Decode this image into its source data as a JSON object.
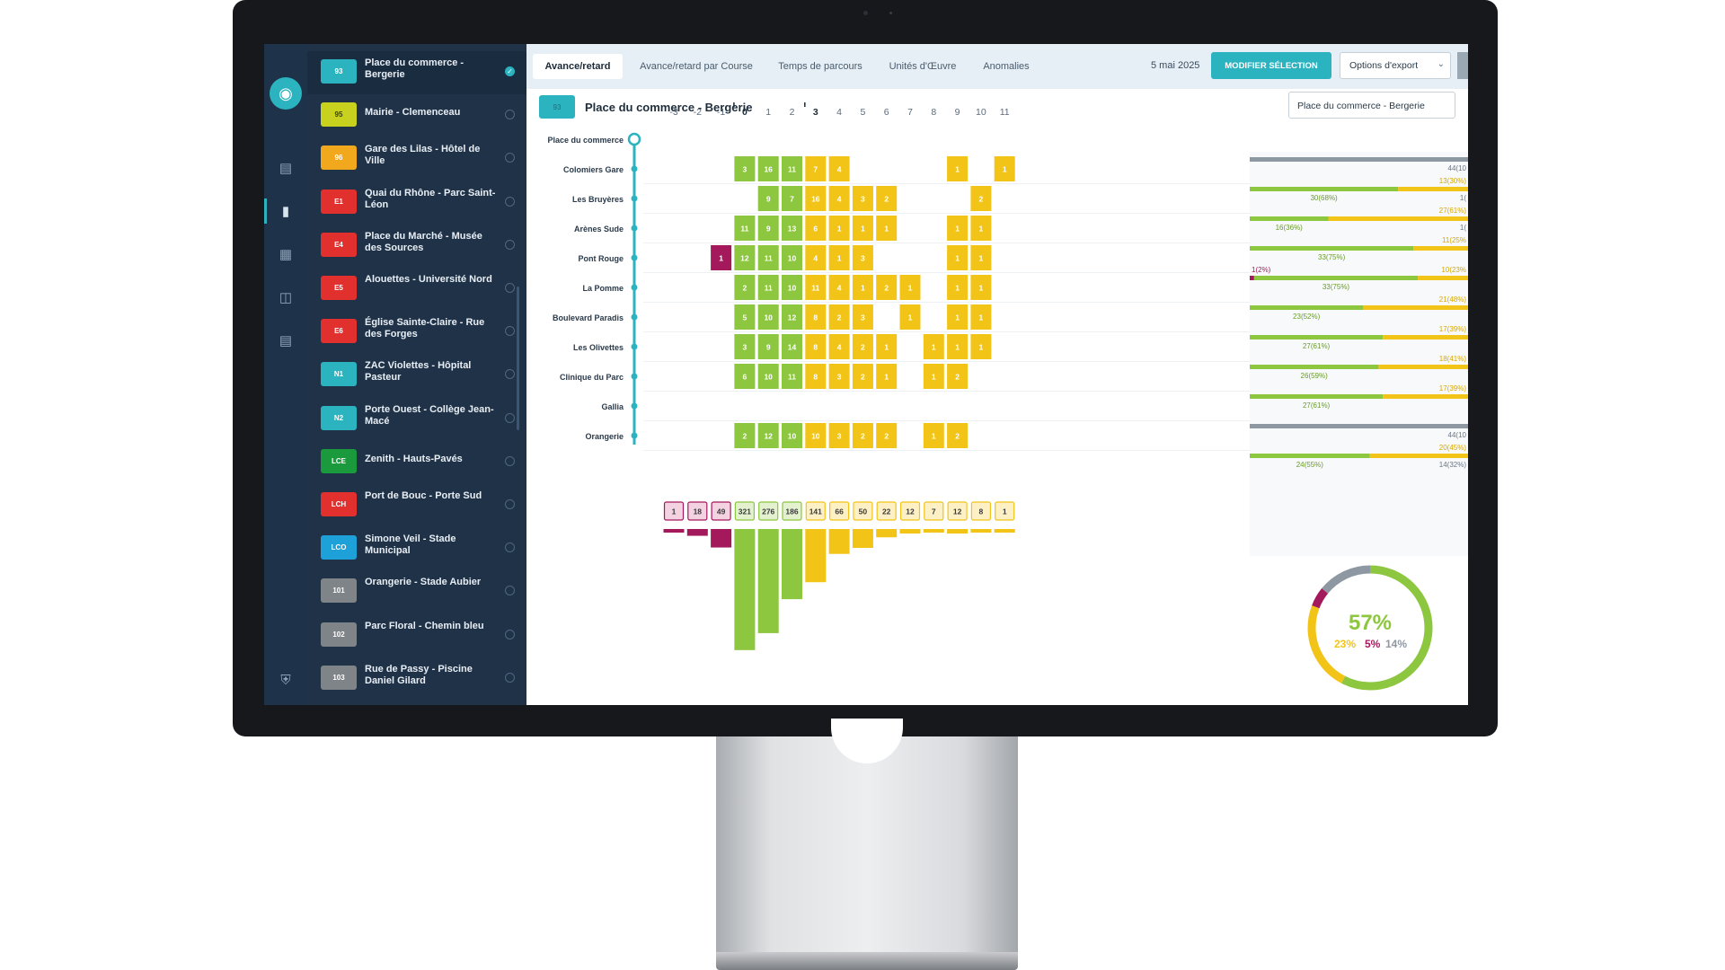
{
  "lines": [
    {
      "code": "93",
      "name": "Place du commerce - Bergerie",
      "color": "#2bb3c0",
      "selected": true
    },
    {
      "code": "95",
      "name": "Mairie - Clemenceau",
      "color": "#c8d21e",
      "selected": false
    },
    {
      "code": "96",
      "name": "Gare des Lilas - Hôtel de Ville",
      "color": "#f2a81d",
      "selected": false
    },
    {
      "code": "E1",
      "name": "Quai du Rhône - Parc Saint-Léon",
      "color": "#e2302f",
      "selected": false
    },
    {
      "code": "E4",
      "name": "Place du Marché - Musée des Sources",
      "color": "#e2302f",
      "selected": false
    },
    {
      "code": "E5",
      "name": "Alouettes - Université Nord",
      "color": "#e2302f",
      "selected": false
    },
    {
      "code": "E6",
      "name": "Église Sainte-Claire - Rue des Forges",
      "color": "#e2302f",
      "selected": false
    },
    {
      "code": "N1",
      "name": "ZAC Violettes - Hôpital Pasteur",
      "color": "#2bb3c0",
      "selected": false
    },
    {
      "code": "N2",
      "name": "Porte Ouest - Collège Jean-Macé",
      "color": "#2bb3c0",
      "selected": false
    },
    {
      "code": "LCE",
      "name": "Zenith - Hauts-Pavés",
      "color": "#1a9a3c",
      "selected": false
    },
    {
      "code": "LCH",
      "name": "Port de Bouc - Porte Sud",
      "color": "#e2302f",
      "selected": false
    },
    {
      "code": "LCO",
      "name": "Simone Veil - Stade Municipal",
      "color": "#1ea0d8",
      "selected": false
    },
    {
      "code": "101",
      "name": "Orangerie - Stade Aubier",
      "color": "#7f8488",
      "selected": false
    },
    {
      "code": "102",
      "name": "Parc Floral - Chemin bleu",
      "color": "#7f8488",
      "selected": false
    },
    {
      "code": "103",
      "name": "Rue de Passy - Piscine Daniel Gilard",
      "color": "#7f8488",
      "selected": false
    }
  ],
  "tabs": [
    "Avance/retard",
    "Avance/retard par Course",
    "Temps de parcours",
    "Unités d'Œuvre",
    "Anomalies"
  ],
  "header": {
    "date": "5 mai 2025",
    "modify_button": "MODIFIER SÉLECTION",
    "export_label": "Options d'export",
    "route_code": "93",
    "route_title": "Place du commerce - Bergerie",
    "route_select": "Place du commerce - Bergerie"
  },
  "colors": {
    "green": "#8dc63f",
    "yellow": "#f2c418",
    "magenta": "#a3195b",
    "gray": "#8e98a3",
    "teal": "#2bb3c0"
  },
  "chart_data": {
    "type": "heatmap",
    "x": [
      -3,
      -2,
      -1,
      0,
      1,
      2,
      3,
      4,
      5,
      6,
      7,
      8,
      9,
      10,
      11
    ],
    "stops": [
      "Place du commerce",
      "Colomiers Gare",
      "Les Bruyères",
      "Arènes Sude",
      "Pont Rouge",
      "La Pomme",
      "Boulevard Paradis",
      "Les Olivettes",
      "Clinique du Parc",
      "Gallia",
      "Orangerie"
    ],
    "cells": [
      [],
      [
        [
          0,
          3
        ],
        [
          1,
          16
        ],
        [
          2,
          11
        ],
        [
          3,
          7
        ],
        [
          4,
          4
        ],
        [
          9,
          1
        ],
        [
          11,
          1
        ]
      ],
      [
        [
          1,
          9
        ],
        [
          2,
          7
        ],
        [
          3,
          16
        ],
        [
          4,
          4
        ],
        [
          5,
          3
        ],
        [
          6,
          2
        ],
        [
          10,
          2
        ]
      ],
      [
        [
          0,
          11
        ],
        [
          1,
          9
        ],
        [
          2,
          13
        ],
        [
          3,
          6
        ],
        [
          4,
          1
        ],
        [
          5,
          1
        ],
        [
          6,
          1
        ],
        [
          9,
          1
        ],
        [
          10,
          1
        ]
      ],
      [
        [
          -1,
          1
        ],
        [
          0,
          12
        ],
        [
          1,
          11
        ],
        [
          2,
          10
        ],
        [
          3,
          4
        ],
        [
          4,
          1
        ],
        [
          5,
          3
        ],
        [
          9,
          1
        ],
        [
          10,
          1
        ]
      ],
      [
        [
          0,
          2
        ],
        [
          1,
          11
        ],
        [
          2,
          10
        ],
        [
          3,
          11
        ],
        [
          4,
          4
        ],
        [
          5,
          1
        ],
        [
          6,
          2
        ],
        [
          7,
          1
        ],
        [
          9,
          1
        ],
        [
          10,
          1
        ]
      ],
      [
        [
          0,
          5
        ],
        [
          1,
          10
        ],
        [
          2,
          12
        ],
        [
          3,
          8
        ],
        [
          4,
          2
        ],
        [
          5,
          3
        ],
        [
          7,
          1
        ],
        [
          9,
          1
        ],
        [
          10,
          1
        ]
      ],
      [
        [
          0,
          3
        ],
        [
          1,
          9
        ],
        [
          2,
          14
        ],
        [
          3,
          8
        ],
        [
          4,
          4
        ],
        [
          5,
          2
        ],
        [
          6,
          1
        ],
        [
          8,
          1
        ],
        [
          9,
          1
        ],
        [
          10,
          1
        ]
      ],
      [
        [
          0,
          6
        ],
        [
          1,
          10
        ],
        [
          2,
          11
        ],
        [
          3,
          8
        ],
        [
          4,
          3
        ],
        [
          5,
          2
        ],
        [
          6,
          1
        ],
        [
          8,
          1
        ],
        [
          9,
          2
        ]
      ],
      [],
      [
        [
          0,
          2
        ],
        [
          1,
          12
        ],
        [
          2,
          10
        ],
        [
          3,
          10
        ],
        [
          4,
          3
        ],
        [
          5,
          2
        ],
        [
          6,
          2
        ],
        [
          8,
          1
        ],
        [
          9,
          2
        ]
      ]
    ],
    "totals": [
      1,
      18,
      49,
      321,
      276,
      186,
      141,
      66,
      50,
      22,
      12,
      7,
      12,
      8,
      1
    ],
    "stop_summary": [
      {
        "type": "gray",
        "labels": [
          "44(10"
        ]
      },
      {
        "type": "split",
        "early": 0,
        "green": 0.68,
        "labels": [
          "13(30%)",
          "30(68%)",
          "1("
        ]
      },
      {
        "type": "split",
        "early": 0,
        "green": 0.36,
        "labels": [
          "27(61%)",
          "16(36%)",
          "1("
        ]
      },
      {
        "type": "split",
        "early": 0,
        "green": 0.75,
        "labels": [
          "11(25%",
          "33(75%)"
        ]
      },
      {
        "type": "split",
        "early": 0.02,
        "green": 0.75,
        "labels": [
          "1(2%)",
          "10(23%",
          "33(75%)"
        ]
      },
      {
        "type": "split",
        "early": 0,
        "green": 0.52,
        "labels": [
          "21(48%)",
          "23(52%)"
        ]
      },
      {
        "type": "split",
        "early": 0,
        "green": 0.61,
        "labels": [
          "17(39%)",
          "27(61%)"
        ]
      },
      {
        "type": "split",
        "early": 0,
        "green": 0.59,
        "labels": [
          "18(41%)",
          "26(59%)"
        ]
      },
      {
        "type": "split",
        "early": 0,
        "green": 0.61,
        "labels": [
          "17(39%)",
          "27(61%)"
        ]
      },
      {
        "type": "gray",
        "labels": [
          "44(10"
        ]
      },
      {
        "type": "split",
        "early": 0,
        "green": 0.55,
        "labels": [
          "20(45%)",
          "24(55%)",
          "14(32%)"
        ]
      }
    ],
    "donut": {
      "on_time": 57,
      "late": 23,
      "early": 5,
      "missing": 14,
      "center": "57%",
      "late_label": "23%",
      "early_label": "5%",
      "missing_label": "14%"
    }
  }
}
